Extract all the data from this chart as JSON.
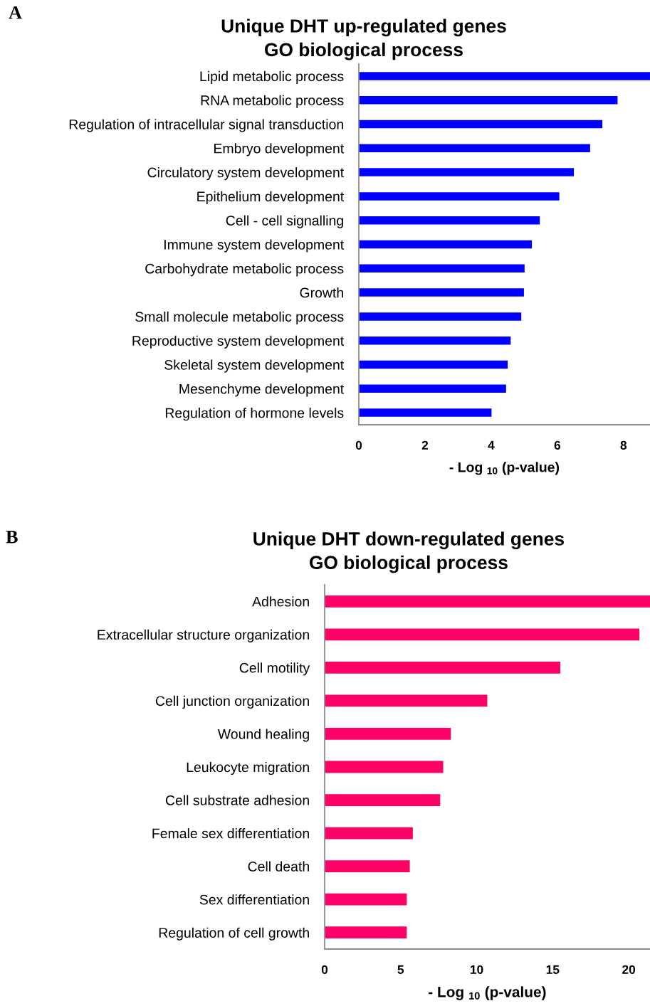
{
  "chart_data": [
    {
      "type": "bar",
      "orientation": "horizontal",
      "title": "Unique DHT up-regulated genes\nGO biological process",
      "xlabel": "- Log $_{10}$ (p-value)",
      "annotations": [
        "A"
      ],
      "categories": [
        "Lipid metabolic process",
        "RNA metabolic process",
        "Regulation of intracellular signal transduction",
        "Embryo development",
        "Circulatory system development",
        "Epithelium development",
        "Cell - cell signalling",
        "Immune system development",
        "Carbohydrate metabolic process",
        "Growth",
        "Small molecule metabolic process",
        "Reproductive system development",
        "Skeletal system development",
        "Mesenchyme development",
        "Regulation of hormone levels"
      ],
      "values": [
        8.8,
        7.82,
        7.36,
        6.99,
        6.5,
        6.06,
        5.47,
        5.23,
        5.01,
        4.99,
        4.91,
        4.59,
        4.5,
        4.45,
        4.01
      ],
      "color": "#0000ff",
      "xlim": [
        0,
        8.8
      ],
      "xticks": [
        0,
        2,
        4,
        6,
        8
      ]
    },
    {
      "type": "bar",
      "orientation": "horizontal",
      "title": "Unique DHT down-regulated genes\nGO biological process",
      "xlabel": "- Log $_{10}$ (p-value)",
      "annotations": [
        "B"
      ],
      "categories": [
        "Adhesion",
        "Extracellular structure organization",
        "Cell motility",
        "Cell junction organization",
        "Wound healing",
        "Leukocyte migration",
        "Cell substrate adhesion",
        "Female sex differentiation",
        "Cell death",
        "Sex differentiation",
        "Regulation of cell growth"
      ],
      "values": [
        21.4,
        20.7,
        15.5,
        10.7,
        8.3,
        7.8,
        7.6,
        5.8,
        5.6,
        5.4,
        5.4
      ],
      "color": "#ff0066",
      "xlim": [
        0,
        21.4
      ],
      "xticks": [
        0,
        5,
        10,
        15,
        20
      ]
    }
  ]
}
